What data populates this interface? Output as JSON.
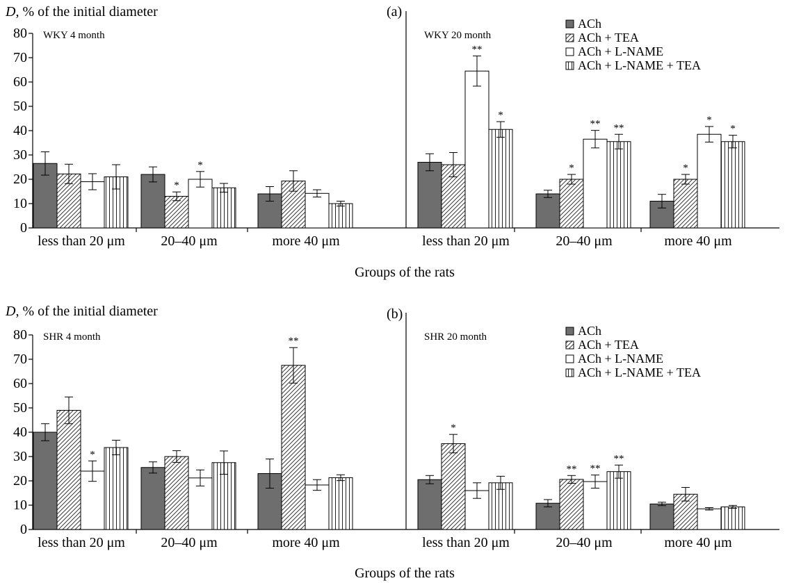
{
  "colors": {
    "ach": "#6e6e6e",
    "ach_tea": "hatch-diagonal",
    "ach_lname": "#ffffff",
    "ach_lname_tea": "hatch-vertical"
  },
  "chart_data": [
    {
      "type": "bar",
      "panel_label": "(a)",
      "ylabel_var": "D",
      "ylabel_rest": ", % of the initial diameter",
      "xlabel": "Groups of the rats",
      "ylim": [
        0,
        80
      ],
      "yticks": [
        "0",
        "10",
        "20",
        "30",
        "40",
        "50",
        "60",
        "70",
        "80"
      ],
      "legend_position": "top-right",
      "legend": [
        "ACh",
        "ACh + TEA",
        "ACh + L-NAME",
        "ACh + L-NAME + TEA"
      ],
      "groups": [
        {
          "label": "WKY 4 month",
          "categories": [
            "less than 20 μm",
            "20–40 μm",
            "more 40 μm"
          ],
          "series": [
            {
              "name": "ACh",
              "values": [
                26.5,
                22,
                14
              ],
              "errors": [
                4.8,
                3.1,
                3.0
              ],
              "sig": [
                "",
                "",
                ""
              ]
            },
            {
              "name": "ACh + TEA",
              "values": [
                22.2,
                13,
                19.3
              ],
              "errors": [
                4.0,
                1.8,
                4.2
              ],
              "sig": [
                "",
                "*",
                ""
              ]
            },
            {
              "name": "ACh + L-NAME",
              "values": [
                19,
                20,
                14.2
              ],
              "errors": [
                3.3,
                3.2,
                1.5
              ],
              "sig": [
                "",
                "*",
                ""
              ]
            },
            {
              "name": "ACh + L-NAME + TEA",
              "values": [
                21,
                16.5,
                10
              ],
              "errors": [
                5.0,
                1.8,
                1.0
              ],
              "sig": [
                "",
                "",
                ""
              ]
            }
          ]
        },
        {
          "label": "WKY 20 month",
          "categories": [
            "less than 20 μm",
            "20–40 μm",
            "more 40 μm"
          ],
          "series": [
            {
              "name": "ACh",
              "values": [
                27,
                14,
                11
              ],
              "errors": [
                3.5,
                1.5,
                2.8
              ],
              "sig": [
                "",
                "",
                ""
              ]
            },
            {
              "name": "ACh + TEA",
              "values": [
                26,
                20,
                20
              ],
              "errors": [
                5.0,
                2.0,
                2.0
              ],
              "sig": [
                "",
                "*",
                "*"
              ]
            },
            {
              "name": "ACh + L-NAME",
              "values": [
                64.5,
                36.5,
                38.5
              ],
              "errors": [
                6.2,
                3.6,
                3.2
              ],
              "sig": [
                "**",
                "**",
                "*"
              ]
            },
            {
              "name": "ACh + L-NAME + TEA",
              "values": [
                40.5,
                35.5,
                35.5
              ],
              "errors": [
                3.2,
                3.0,
                2.6
              ],
              "sig": [
                "*",
                "**",
                "*"
              ]
            }
          ]
        }
      ]
    },
    {
      "type": "bar",
      "panel_label": "(b)",
      "ylabel_var": "D",
      "ylabel_rest": ", % of the initial diameter",
      "xlabel": "Groups of the rats",
      "ylim": [
        0,
        80
      ],
      "yticks": [
        "0",
        "10",
        "20",
        "30",
        "40",
        "50",
        "60",
        "70",
        "80"
      ],
      "legend_position": "top-right",
      "legend": [
        "ACh",
        "ACh + TEA",
        "ACh + L-NAME",
        "ACh + L-NAME + TEA"
      ],
      "groups": [
        {
          "label": "SHR 4 month",
          "categories": [
            "less than 20 μm",
            "20–40 μm",
            "more 40 μm"
          ],
          "series": [
            {
              "name": "ACh",
              "values": [
                40,
                25.5,
                23
              ],
              "errors": [
                3.5,
                2.3,
                6.0
              ],
              "sig": [
                "",
                "",
                ""
              ]
            },
            {
              "name": "ACh + TEA",
              "values": [
                49,
                30,
                67.5
              ],
              "errors": [
                5.5,
                2.4,
                7.3
              ],
              "sig": [
                "",
                "",
                "**"
              ]
            },
            {
              "name": "ACh + L-NAME",
              "values": [
                24,
                21.2,
                18.3
              ],
              "errors": [
                4.2,
                3.3,
                2.2
              ],
              "sig": [
                "*",
                "",
                ""
              ]
            },
            {
              "name": "ACh + L-NAME + TEA",
              "values": [
                33.7,
                27.5,
                21.3
              ],
              "errors": [
                3.0,
                4.8,
                1.2
              ],
              "sig": [
                "",
                "",
                ""
              ]
            }
          ]
        },
        {
          "label": "SHR 20 month",
          "categories": [
            "less than 20 μm",
            "20–40 μm",
            "more 40 μm"
          ],
          "series": [
            {
              "name": "ACh",
              "values": [
                20.5,
                10.8,
                10.5
              ],
              "errors": [
                1.7,
                1.5,
                0.7
              ],
              "sig": [
                "",
                "",
                ""
              ]
            },
            {
              "name": "ACh + TEA",
              "values": [
                35.3,
                20.6,
                14.5
              ],
              "errors": [
                3.8,
                1.6,
                2.8
              ],
              "sig": [
                "*",
                "**",
                ""
              ]
            },
            {
              "name": "ACh + L-NAME",
              "values": [
                16,
                19.7,
                8.5
              ],
              "errors": [
                3.2,
                2.7,
                0.5
              ],
              "sig": [
                "",
                "**",
                ""
              ]
            },
            {
              "name": "ACh + L-NAME + TEA",
              "values": [
                19.2,
                23.8,
                9.3
              ],
              "errors": [
                2.7,
                2.7,
                0.6
              ],
              "sig": [
                "",
                "**",
                ""
              ]
            }
          ]
        }
      ]
    }
  ]
}
